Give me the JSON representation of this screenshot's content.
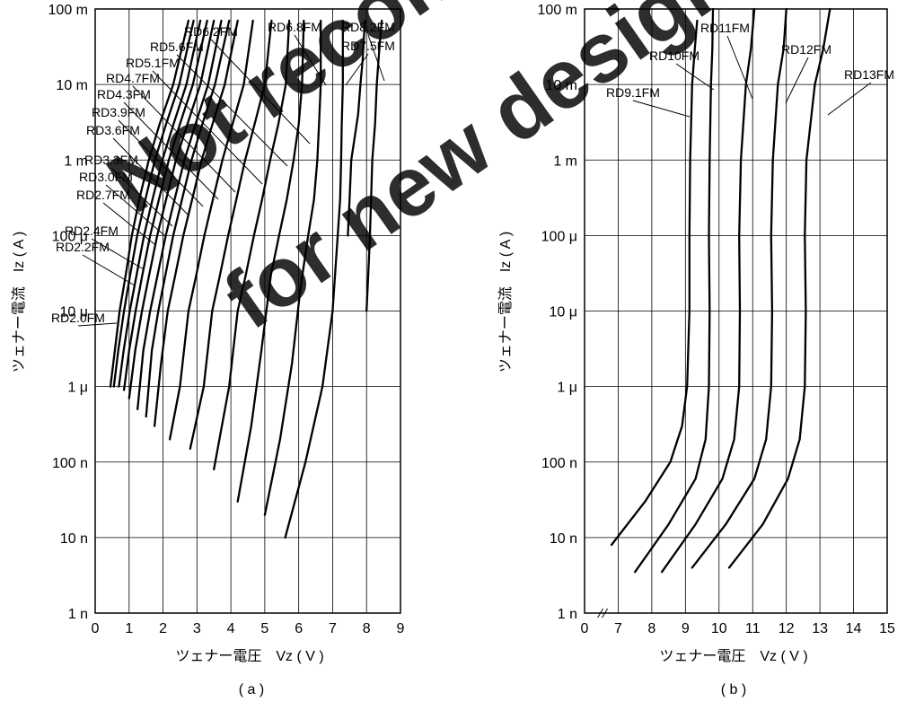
{
  "watermark": {
    "line1": "Not recommended",
    "line2": "for new design",
    "color": "#ff1a1a"
  },
  "chart_data": [
    {
      "type": "line",
      "caption": "( a )",
      "xlabel": "ツェナー電圧　Vz ( V )",
      "ylabel": "ツェナー電流　Iz ( A )",
      "xlim": [
        0,
        9
      ],
      "ylim": [
        "1 n",
        "1 A"
      ],
      "y_scale": "log",
      "grid": true,
      "x_ticks": [
        "0",
        "1",
        "2",
        "3",
        "4",
        "5",
        "6",
        "7",
        "8",
        "9"
      ],
      "y_ticks": [
        "1 n",
        "10 n",
        "100 n",
        "1 μ",
        "10 μ",
        "100 μ",
        "1 m",
        "10 m",
        "100 m"
      ],
      "x_unit": "V",
      "y_unit": "A",
      "series": [
        {
          "name": "RD2.0FM",
          "x": [
            0.45,
            0.58,
            0.72,
            0.9,
            1.08,
            1.3,
            1.58,
            1.9,
            2.3,
            2.75
          ],
          "y": [
            1e-06,
            3e-06,
            1e-05,
            3e-05,
            0.0001,
            0.0003,
            0.001,
            0.003,
            0.01,
            0.07
          ]
        },
        {
          "name": "RD2.2FM",
          "x": [
            0.55,
            0.68,
            0.85,
            1.03,
            1.24,
            1.48,
            1.76,
            2.09,
            2.48,
            2.9
          ],
          "y": [
            1e-06,
            3e-06,
            1e-05,
            3e-05,
            0.0001,
            0.0003,
            0.001,
            0.003,
            0.01,
            0.07
          ]
        },
        {
          "name": "RD2.4FM",
          "x": [
            0.7,
            0.84,
            1.02,
            1.22,
            1.44,
            1.69,
            1.98,
            2.31,
            2.69,
            3.1
          ],
          "y": [
            1e-06,
            3e-06,
            1e-05,
            3e-05,
            0.0001,
            0.0003,
            0.001,
            0.003,
            0.01,
            0.07
          ]
        },
        {
          "name": "RD2.7FM",
          "x": [
            0.85,
            1.0,
            1.19,
            1.39,
            1.62,
            1.88,
            2.17,
            2.5,
            2.88,
            3.3
          ],
          "y": [
            9e-07,
            3e-06,
            1e-05,
            3e-05,
            0.0001,
            0.0003,
            0.001,
            0.003,
            0.01,
            0.07
          ]
        },
        {
          "name": "RD3.0FM",
          "x": [
            1.0,
            1.18,
            1.38,
            1.59,
            1.83,
            2.09,
            2.38,
            2.72,
            3.1,
            3.5
          ],
          "y": [
            7e-07,
            3e-06,
            1e-05,
            3e-05,
            0.0001,
            0.0003,
            0.001,
            0.003,
            0.01,
            0.07
          ]
        },
        {
          "name": "RD3.3FM",
          "x": [
            1.25,
            1.42,
            1.62,
            1.84,
            2.08,
            2.34,
            2.63,
            2.96,
            3.33,
            3.72
          ],
          "y": [
            5e-07,
            3e-06,
            1e-05,
            3e-05,
            0.0001,
            0.0003,
            0.001,
            0.003,
            0.01,
            0.07
          ]
        },
        {
          "name": "RD3.6FM",
          "x": [
            1.5,
            1.67,
            1.86,
            2.07,
            2.3,
            2.56,
            2.84,
            3.16,
            3.53,
            3.95
          ],
          "y": [
            4e-07,
            3e-06,
            1e-05,
            3e-05,
            0.0001,
            0.0003,
            0.001,
            0.003,
            0.01,
            0.07
          ]
        },
        {
          "name": "RD3.9FM",
          "x": [
            1.75,
            1.94,
            2.14,
            2.36,
            2.6,
            2.86,
            3.14,
            3.46,
            3.82,
            4.2
          ],
          "y": [
            3e-07,
            2e-06,
            1e-05,
            3e-05,
            0.0001,
            0.0003,
            0.001,
            0.003,
            0.01,
            0.07
          ]
        },
        {
          "name": "RD4.3FM",
          "x": [
            2.2,
            2.5,
            2.75,
            2.98,
            3.22,
            3.47,
            3.75,
            4.05,
            4.38,
            4.65
          ],
          "y": [
            2e-07,
            1e-06,
            1e-05,
            3e-05,
            0.0001,
            0.0003,
            0.001,
            0.003,
            0.01,
            0.07
          ]
        },
        {
          "name": "RD4.7FM",
          "x": [
            2.8,
            3.2,
            3.45,
            3.68,
            3.92,
            4.16,
            4.42,
            4.7,
            5.0,
            5.2
          ],
          "y": [
            1.5e-07,
            1e-06,
            1e-05,
            3e-05,
            0.0001,
            0.0003,
            0.001,
            0.003,
            0.01,
            0.07
          ]
        },
        {
          "name": "RD5.1FM",
          "x": [
            3.5,
            3.95,
            4.2,
            4.44,
            4.68,
            4.92,
            5.16,
            5.4,
            5.62,
            5.72
          ],
          "y": [
            8e-08,
            1e-06,
            1e-05,
            3e-05,
            0.0001,
            0.0003,
            0.001,
            0.003,
            0.01,
            0.07
          ]
        },
        {
          "name": "RD5.6FM",
          "x": [
            4.2,
            4.6,
            4.9,
            5.18,
            5.42,
            5.65,
            5.85,
            6.0,
            6.1,
            6.15
          ],
          "y": [
            3e-08,
            3e-07,
            3e-06,
            3e-05,
            0.0001,
            0.0003,
            0.001,
            0.003,
            0.01,
            0.07
          ]
        },
        {
          "name": "RD6.2FM",
          "x": [
            5.0,
            5.45,
            5.8,
            6.05,
            6.28,
            6.45,
            6.55,
            6.6,
            6.65,
            6.65
          ],
          "y": [
            2e-08,
            2e-07,
            2e-06,
            2e-05,
            0.0001,
            0.0003,
            0.001,
            0.003,
            0.01,
            0.07
          ]
        },
        {
          "name": "RD6.8FM",
          "x": [
            5.6,
            6.2,
            6.7,
            7.0,
            7.15,
            7.22,
            7.25,
            7.27,
            7.3,
            7.3
          ],
          "y": [
            1e-08,
            1e-07,
            1e-06,
            1e-05,
            0.0001,
            0.0003,
            0.001,
            0.003,
            0.01,
            0.07
          ]
        },
        {
          "name": "RD7.5FM",
          "x": [
            7.45,
            7.45,
            7.5,
            7.55,
            7.65,
            7.75,
            7.82,
            7.88,
            7.92,
            7.95
          ],
          "y": [
            0.0001,
            0.0001,
            0.0003,
            0.001,
            0.002,
            0.004,
            0.01,
            0.02,
            0.04,
            0.07
          ]
        },
        {
          "name": "RD8.2FM",
          "x": [
            8.0,
            8.0,
            8.05,
            8.1,
            8.17,
            8.25,
            8.3,
            8.35,
            8.4,
            8.45
          ],
          "y": [
            1e-05,
            1e-05,
            3e-05,
            0.0001,
            0.001,
            0.003,
            0.01,
            0.02,
            0.04,
            0.07
          ]
        }
      ]
    },
    {
      "type": "line",
      "caption": "( b )",
      "xlabel": "ツェナー電圧　Vz ( V )",
      "ylabel": "ツェナー電流　Iz ( A )",
      "xlim": [
        0,
        15
      ],
      "x_axis_break": "0 to 7",
      "ylim": [
        "1 n",
        "1 A"
      ],
      "y_scale": "log",
      "grid": true,
      "x_ticks": [
        "0",
        "7",
        "8",
        "9",
        "10",
        "11",
        "12",
        "13",
        "14",
        "15"
      ],
      "y_ticks": [
        "1 n",
        "10 n",
        "100 n",
        "1 μ",
        "10 μ",
        "100 μ",
        "1 m",
        "10 m",
        "100 m"
      ],
      "x_unit": "V",
      "y_unit": "A",
      "series": [
        {
          "name": "RD9.1FM",
          "x": [
            6.8,
            7.8,
            8.55,
            8.9,
            9.05,
            9.12,
            9.12,
            9.14,
            9.2,
            9.28,
            9.35
          ],
          "y": [
            8e-09,
            3e-08,
            1e-07,
            3e-07,
            1e-06,
            1e-05,
            0.0001,
            0.001,
            0.01,
            0.03,
            0.07
          ]
        },
        {
          "name": "RD10FM",
          "x": [
            7.5,
            8.5,
            9.3,
            9.6,
            9.7,
            9.72,
            9.7,
            9.72,
            9.76,
            9.8,
            9.82
          ],
          "y": [
            3.5e-09,
            1.5e-08,
            6e-08,
            2e-07,
            1e-06,
            1e-05,
            0.0001,
            0.001,
            0.01,
            0.03,
            0.1
          ]
        },
        {
          "name": "RD11FM",
          "x": [
            8.3,
            9.3,
            10.1,
            10.45,
            10.6,
            10.62,
            10.6,
            10.65,
            10.8,
            10.95,
            11.05
          ],
          "y": [
            3.5e-09,
            1.5e-08,
            6e-08,
            2e-07,
            1e-06,
            1e-05,
            0.0001,
            0.001,
            0.01,
            0.03,
            0.1
          ]
        },
        {
          "name": "RD12FM",
          "x": [
            9.2,
            10.2,
            11.05,
            11.4,
            11.55,
            11.58,
            11.55,
            11.6,
            11.75,
            11.92,
            12.0
          ],
          "y": [
            4e-09,
            1.5e-08,
            6e-08,
            2e-07,
            1e-06,
            1e-05,
            0.0001,
            0.001,
            0.01,
            0.03,
            0.1
          ]
        },
        {
          "name": "RD13FM",
          "x": [
            10.3,
            11.3,
            12.05,
            12.4,
            12.55,
            12.58,
            12.55,
            12.6,
            12.85,
            13.1,
            13.3
          ],
          "y": [
            4e-09,
            1.5e-08,
            6e-08,
            2e-07,
            1e-06,
            1e-05,
            0.0001,
            0.001,
            0.01,
            0.03,
            0.1
          ]
        }
      ]
    }
  ]
}
